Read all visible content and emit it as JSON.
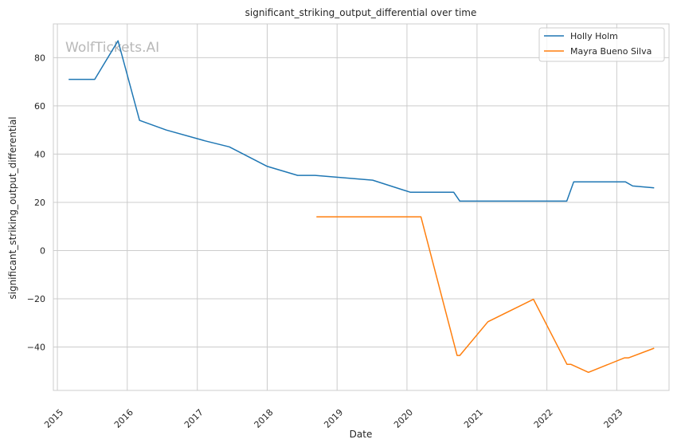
{
  "chart_data": {
    "type": "line",
    "title": "significant_striking_output_differential over time",
    "xlabel": "Date",
    "ylabel": "significant_striking_output_differential",
    "watermark": "WolfTickets.AI",
    "x_ticks": [
      "2015",
      "2016",
      "2017",
      "2018",
      "2019",
      "2020",
      "2021",
      "2022",
      "2023"
    ],
    "y_ticks": [
      -40,
      -20,
      0,
      20,
      40,
      60,
      80
    ],
    "xlim": [
      "2014-12-11",
      "2023-10-01"
    ],
    "ylim": [
      -58,
      94
    ],
    "grid": true,
    "legend_position": "top-right",
    "series": [
      {
        "name": "Holly Holm",
        "color": "#1f77b4",
        "points": [
          [
            "2015-03-01",
            71
          ],
          [
            "2015-07-15",
            71
          ],
          [
            "2015-11-14",
            87
          ],
          [
            "2016-03-05",
            54
          ],
          [
            "2016-07-23",
            50
          ],
          [
            "2017-02-11",
            45.5
          ],
          [
            "2017-06-17",
            43
          ],
          [
            "2017-12-30",
            35
          ],
          [
            "2018-06-09",
            31.2
          ],
          [
            "2018-09-08",
            31.2
          ],
          [
            "2019-07-06",
            29.2
          ],
          [
            "2020-01-18",
            24.2
          ],
          [
            "2020-09-01",
            24.2
          ],
          [
            "2020-10-03",
            20.5
          ],
          [
            "2022-04-15",
            20.5
          ],
          [
            "2022-05-21",
            28.5
          ],
          [
            "2023-02-15",
            28.5
          ],
          [
            "2023-03-25",
            26.8
          ],
          [
            "2023-07-15",
            26
          ]
        ]
      },
      {
        "name": "Mayra Bueno Silva",
        "color": "#ff7f0e",
        "points": [
          [
            "2018-09-15",
            14
          ],
          [
            "2020-03-14",
            14
          ],
          [
            "2020-09-19",
            -43.5
          ],
          [
            "2020-10-03",
            -43.5
          ],
          [
            "2021-02-27",
            -29.5
          ],
          [
            "2021-10-23",
            -20.2
          ],
          [
            "2022-04-16",
            -47.2
          ],
          [
            "2022-05-07",
            -47.2
          ],
          [
            "2022-08-06",
            -50.5
          ],
          [
            "2023-02-11",
            -44.5
          ],
          [
            "2023-03-04",
            -44.5
          ],
          [
            "2023-07-15",
            -40.5
          ]
        ]
      }
    ]
  }
}
